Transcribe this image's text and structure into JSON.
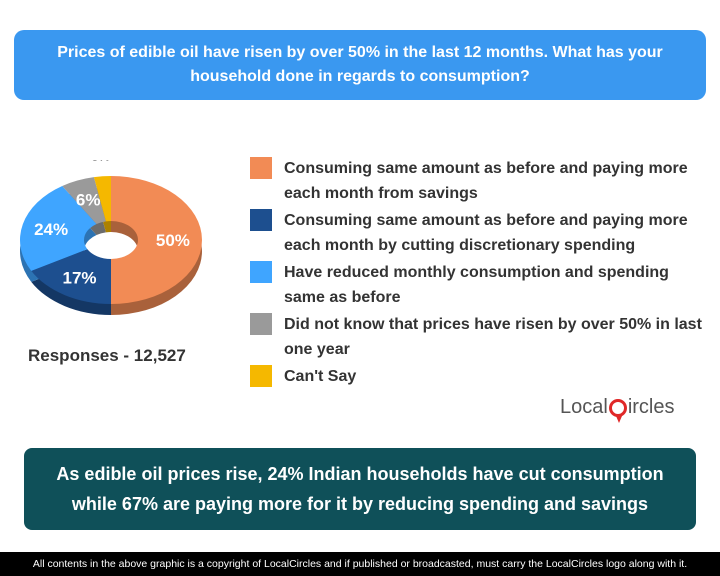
{
  "question": "Prices of edible oil have risen by over 50% in the last 12 months. What has your household done in regards to consumption?",
  "chart_data": {
    "type": "pie",
    "categories": [
      "Consuming same amount as before and paying more each month from savings",
      "Consuming same amount as before and paying more each month by cutting discretionary spending",
      "Have reduced monthly consumption and spending same as before",
      "Did not know that prices have risen by over 50% in last one year",
      "Can't Say"
    ],
    "values": [
      50,
      17,
      24,
      6,
      3
    ],
    "value_labels": [
      "50%",
      "17%",
      "24%",
      "6%",
      "3%"
    ],
    "colors": [
      "#f28b55",
      "#1d4f8f",
      "#3fa5ff",
      "#9a9a9a",
      "#f5b800"
    ],
    "legend_position": "right"
  },
  "responses_label": "Responses - 12,527",
  "logo_text": {
    "prefix": "Local",
    "suffix": "ircles"
  },
  "takeaway": "As edible oil prices rise, 24% Indian households have cut consumption while 67% are paying more for it by reducing spending and savings",
  "footer": "All contents in the above graphic is a copyright of LocalCircles and if published or broadcasted, must carry the LocalCircles logo along with it."
}
